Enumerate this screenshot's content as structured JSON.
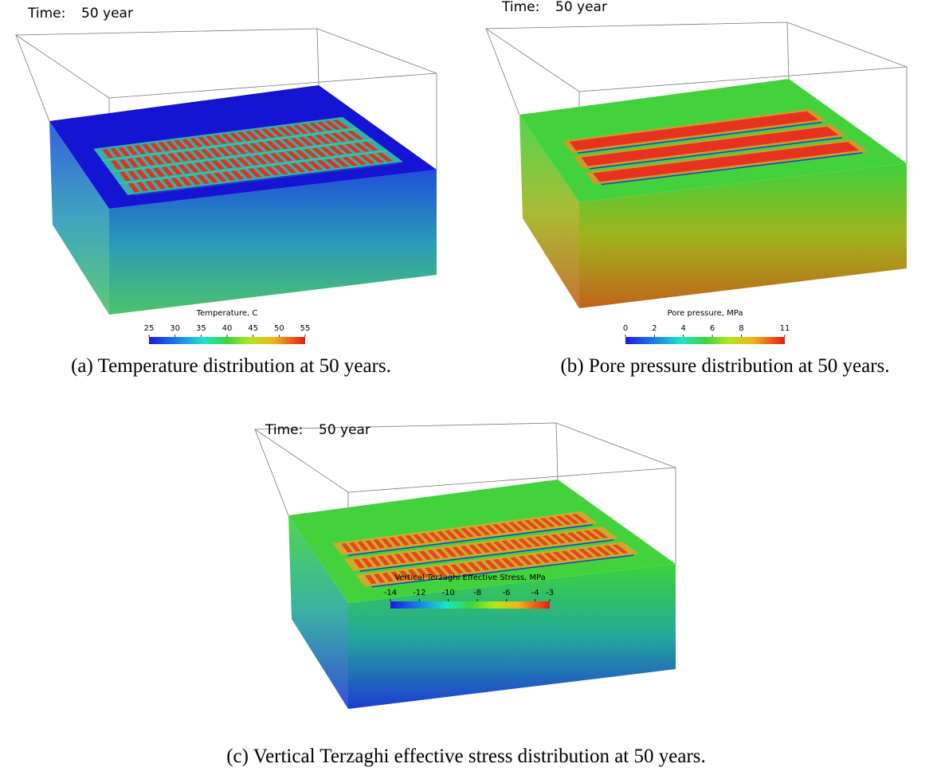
{
  "panels": [
    {
      "time_label": "Time:",
      "time_value": "50 year",
      "colorbar": {
        "title": "Temperature, C",
        "ticks": [
          25,
          30,
          35,
          40,
          45,
          50,
          55
        ]
      },
      "caption": "(a) Temperature distribution at 50 years."
    },
    {
      "time_label": "Time:",
      "time_value": "50 year",
      "colorbar": {
        "title": "Pore pressure, MPa",
        "ticks": [
          0,
          2,
          4,
          6,
          8,
          11
        ]
      },
      "caption": "(b) Pore pressure distribution at 50 years."
    },
    {
      "time_label": "Time:",
      "time_value": "50 year",
      "colorbar": {
        "title": "Vertical Terzaghi Effective Stress, MPa",
        "ticks": [
          -14,
          -12,
          -10,
          -8,
          -6,
          -4,
          -3
        ]
      },
      "caption": "(c) Vertical Terzaghi effective stress distribution at 50 years."
    }
  ]
}
